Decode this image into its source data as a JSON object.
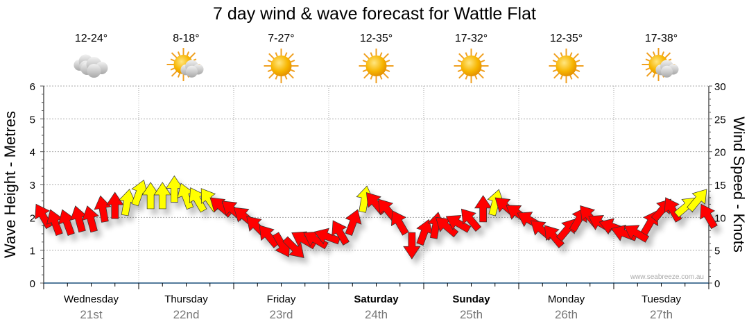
{
  "chart_data": {
    "type": "scatter",
    "title": "7 day wind & wave forecast for Wattle Flat",
    "ylabel_left": "Wave Height - Metres",
    "ylabel_right": "Wind Speed - Knots",
    "ylim_left": [
      0,
      6
    ],
    "ylim_right": [
      0,
      30
    ],
    "yticks_left": [
      "0",
      "1",
      "2",
      "3",
      "4",
      "5",
      "6"
    ],
    "yticks_right": [
      "0",
      "5",
      "10",
      "15",
      "20",
      "25",
      "30"
    ],
    "grid": true,
    "watermark": "www.seabreeze.com.au",
    "days": [
      {
        "name": "Wednesday",
        "date": "21st",
        "temp": "12-24°",
        "icon": "cloudy-icon",
        "weekend": false
      },
      {
        "name": "Thursday",
        "date": "22nd",
        "temp": "8-18°",
        "icon": "partly-cloudy-icon",
        "weekend": false
      },
      {
        "name": "Friday",
        "date": "23rd",
        "temp": "7-27°",
        "icon": "sunny-icon",
        "weekend": false
      },
      {
        "name": "Saturday",
        "date": "24th",
        "temp": "12-35°",
        "icon": "sunny-icon",
        "weekend": true
      },
      {
        "name": "Sunday",
        "date": "25th",
        "temp": "17-32°",
        "icon": "sunny-icon",
        "weekend": true
      },
      {
        "name": "Monday",
        "date": "26th",
        "temp": "12-35°",
        "icon": "sunny-icon",
        "weekend": false
      },
      {
        "name": "Tuesday",
        "date": "27th",
        "temp": "17-38°",
        "icon": "partly-cloudy-icon",
        "weekend": false
      }
    ],
    "wind_interval_hours": 3,
    "wind_speed_knots": [
      10,
      9,
      9,
      9.5,
      9.5,
      11,
      11.5,
      12,
      13.5,
      13,
      13,
      14,
      13,
      12.5,
      12.5,
      11.5,
      11,
      10,
      8.5,
      7,
      6,
      5.5,
      6.5,
      6.5,
      7,
      7.5,
      9,
      12.5,
      12,
      11,
      9,
      6,
      7.5,
      8.5,
      8.5,
      9,
      9.5,
      11,
      12,
      11.5,
      10.5,
      9.5,
      8,
      7,
      8,
      9.5,
      10,
      9,
      8.5,
      7.5,
      7.5,
      9,
      11,
      11,
      11.5,
      12.5,
      10
    ],
    "wind_arrow_heading_deg": [
      -30,
      -20,
      -20,
      -15,
      -15,
      -10,
      0,
      10,
      20,
      0,
      0,
      0,
      -20,
      -30,
      -35,
      -50,
      -50,
      -50,
      -45,
      -40,
      150,
      135,
      -60,
      -60,
      -70,
      -30,
      20,
      10,
      -40,
      -40,
      -30,
      180,
      20,
      10,
      -50,
      -60,
      -40,
      0,
      15,
      -50,
      -55,
      -60,
      -50,
      -40,
      40,
      30,
      -40,
      -60,
      -70,
      -70,
      -60,
      30,
      40,
      -30,
      50,
      40,
      -30
    ],
    "wind_colors": [
      "red",
      "red",
      "red",
      "red",
      "red",
      "red",
      "red",
      "yellow",
      "yellow",
      "yellow",
      "yellow",
      "yellow",
      "yellow",
      "yellow",
      "yellow",
      "red",
      "red",
      "red",
      "red",
      "red",
      "red",
      "red",
      "red",
      "red",
      "red",
      "red",
      "red",
      "yellow",
      "red",
      "red",
      "red",
      "red",
      "red",
      "red",
      "red",
      "red",
      "red",
      "red",
      "yellow",
      "red",
      "red",
      "red",
      "red",
      "red",
      "red",
      "red",
      "red",
      "red",
      "red",
      "red",
      "red",
      "red",
      "red",
      "red",
      "yellow",
      "yellow",
      "red"
    ],
    "color_map": {
      "red": "#ff0000",
      "yellow": "#ffff00"
    }
  }
}
